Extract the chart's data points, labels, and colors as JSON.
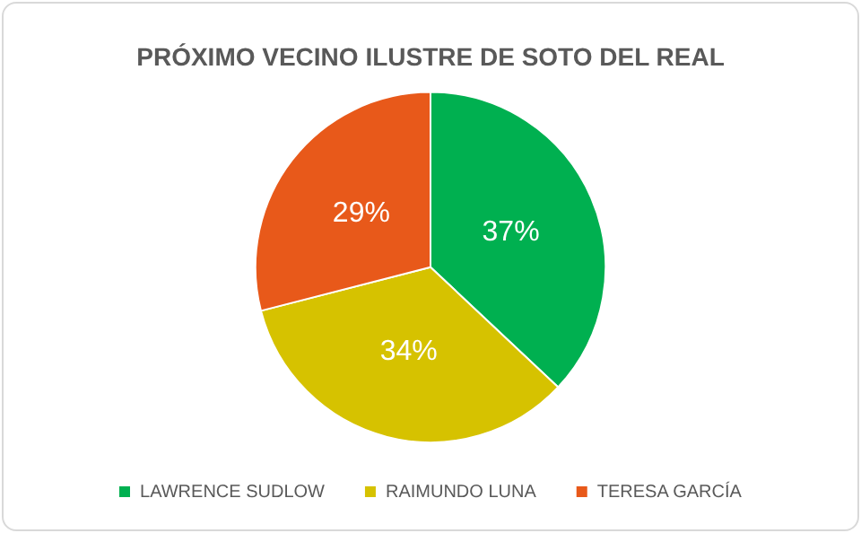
{
  "chart_data": {
    "type": "pie",
    "title": "PRÓXIMO VECINO ILUSTRE DE SOTO DEL REAL",
    "categories": [
      "LAWRENCE SUDLOW",
      "RAIMUNDO LUNA",
      "TERESA GARCÍA"
    ],
    "values": [
      37,
      34,
      29
    ],
    "colors": [
      "#00b050",
      "#d6c200",
      "#e8591a"
    ],
    "value_labels": [
      "37%",
      "34%",
      "29%"
    ],
    "legend": "bottom"
  }
}
